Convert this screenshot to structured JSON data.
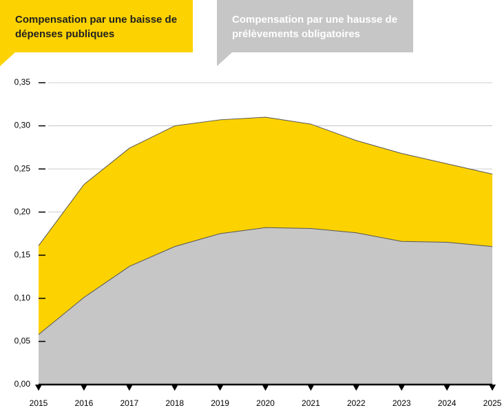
{
  "chart_data": {
    "type": "area",
    "categories": [
      "2015",
      "2016",
      "2017",
      "2018",
      "2019",
      "2020",
      "2021",
      "2022",
      "2023",
      "2024",
      "2025"
    ],
    "series": [
      {
        "name": "Compensation par une baisse de dépenses publiques",
        "color": "#fcd200",
        "values": [
          0.161,
          0.232,
          0.274,
          0.3,
          0.307,
          0.31,
          0.302,
          0.283,
          0.268,
          0.256,
          0.244
        ]
      },
      {
        "name": "Compensation par une hausse de prélèvements obligatoires",
        "color": "#c6c6c6",
        "values": [
          0.058,
          0.101,
          0.137,
          0.16,
          0.175,
          0.182,
          0.181,
          0.176,
          0.166,
          0.165,
          0.16
        ]
      }
    ],
    "ylim": [
      0,
      0.35
    ],
    "yticks": [
      {
        "value": 0,
        "label": "0,00"
      },
      {
        "value": 0.05,
        "label": "0,05"
      },
      {
        "value": 0.1,
        "label": "0,10"
      },
      {
        "value": 0.15,
        "label": "0,15"
      },
      {
        "value": 0.2,
        "label": "0,20"
      },
      {
        "value": 0.25,
        "label": "0,25"
      },
      {
        "value": 0.3,
        "label": "0,30"
      },
      {
        "value": 0.35,
        "label": "0,35"
      }
    ],
    "grid": true
  }
}
